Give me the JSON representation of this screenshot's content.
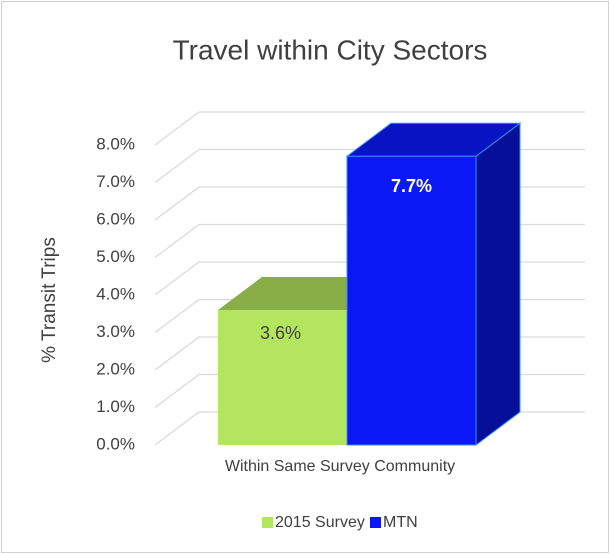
{
  "chart_data": {
    "type": "bar3d",
    "title": "Travel within City Sectors",
    "y_axis_label": "% Transit Trips",
    "categories": [
      "Within Same Survey Community"
    ],
    "series": [
      {
        "name": "2015 Survey",
        "color": "#b4e55e",
        "values": [
          3.6
        ],
        "value_labels": [
          "3.6%"
        ]
      },
      {
        "name": "MTN",
        "color": "#0a18f5",
        "values": [
          7.7
        ],
        "value_labels": [
          "7.7%"
        ]
      }
    ],
    "ylim": [
      0,
      8
    ],
    "yticks": [
      {
        "value": 0,
        "label": "0.0%"
      },
      {
        "value": 1,
        "label": "1.0%"
      },
      {
        "value": 2,
        "label": "2.0%"
      },
      {
        "value": 3,
        "label": "3.0%"
      },
      {
        "value": 4,
        "label": "4.0%"
      },
      {
        "value": 5,
        "label": "5.0%"
      },
      {
        "value": 6,
        "label": "6.0%"
      },
      {
        "value": 7,
        "label": "7.0%"
      },
      {
        "value": 8,
        "label": "8.0%"
      }
    ],
    "grid": true,
    "legend": "bottom"
  }
}
